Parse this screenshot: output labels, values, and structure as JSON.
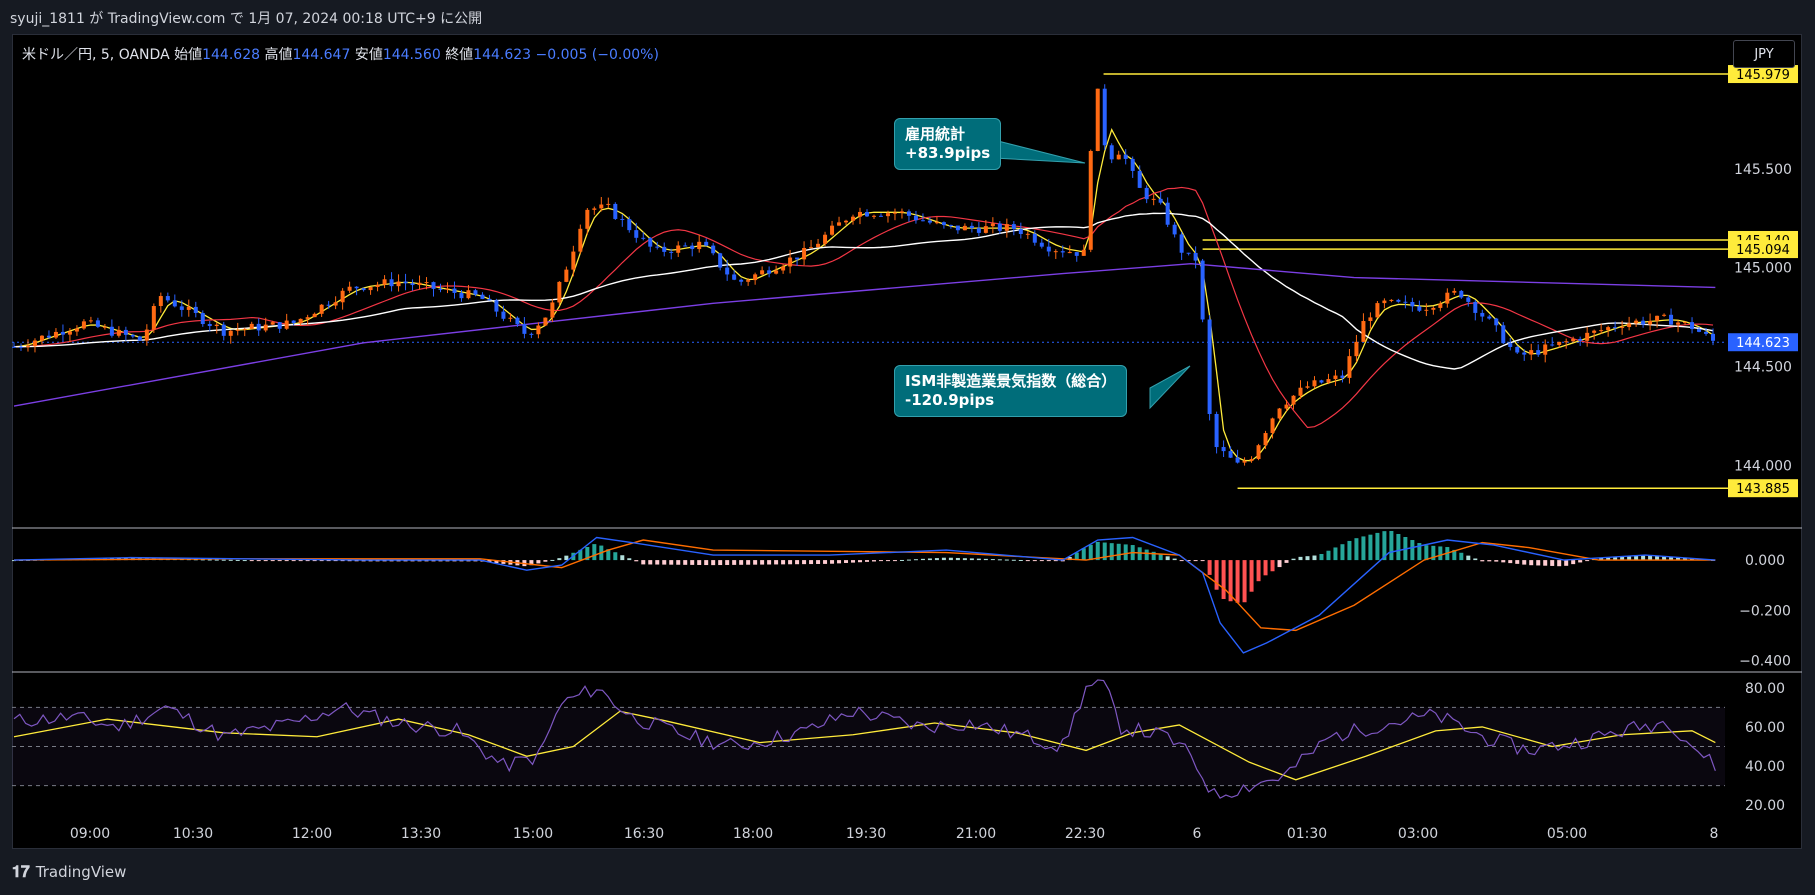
{
  "header": {
    "published_text": "syuji_1811 が TradingView.com で 1月 07, 2024 00:18 UTC+9 に公開"
  },
  "legend": {
    "symbol": "米ドル／円, 5, OANDA",
    "open_label": "始値",
    "open": "144.628",
    "high_label": "高値",
    "high": "144.647",
    "low_label": "安値",
    "low": "144.560",
    "close_label": "終値",
    "close": "144.623",
    "change": "−0.005 (−0.00%)"
  },
  "currency_button": "JPY",
  "footer": {
    "brand": "TradingView",
    "logo_icon": "tradingview-logo-icon"
  },
  "colors": {
    "up": "#ff6a13",
    "down": "#2962ff",
    "ma_fast": "#ffeb3b",
    "ma_mid": "#f23645",
    "ma_slow": "#ffffff",
    "ma_long": "#7b3fe4",
    "level": "#ffeb3b",
    "macd": "#2962ff",
    "signal": "#ff6d00",
    "rsi": "#7e57c2",
    "rsi_ma": "#ffeb3b"
  },
  "callouts": [
    {
      "title": "雇用統計",
      "value": "+83.9pips"
    },
    {
      "title": "ISM非製造業景気指数（総合）",
      "value": "-120.9pips"
    }
  ],
  "chart_data": [
    {
      "type": "candlestick",
      "symbol": "USD/JPY",
      "interval": "5",
      "xticks": [
        "09:00",
        "10:30",
        "12:00",
        "13:30",
        "15:00",
        "16:30",
        "18:00",
        "19:30",
        "21:00",
        "22:30",
        "6",
        "01:30",
        "03:00",
        "05:00",
        "8"
      ],
      "yticks": [
        "145.500",
        "145.000",
        "144.500",
        "144.000"
      ],
      "ylim": [
        143.8,
        146.05
      ],
      "price_path": [
        [
          0,
          144.6
        ],
        [
          60,
          144.72
        ],
        [
          110,
          144.63
        ],
        [
          125,
          144.86
        ],
        [
          180,
          144.68
        ],
        [
          240,
          144.72
        ],
        [
          290,
          144.9
        ],
        [
          330,
          144.93
        ],
        [
          400,
          144.85
        ],
        [
          440,
          144.66
        ],
        [
          460,
          144.78
        ],
        [
          480,
          145.1
        ],
        [
          490,
          145.3
        ],
        [
          510,
          145.3
        ],
        [
          550,
          145.08
        ],
        [
          590,
          145.12
        ],
        [
          620,
          144.92
        ],
        [
          680,
          145.08
        ],
        [
          720,
          145.28
        ],
        [
          760,
          145.28
        ],
        [
          800,
          145.2
        ],
        [
          860,
          145.2
        ],
        [
          890,
          145.1
        ],
        [
          920,
          145.07
        ],
        [
          925,
          145.75
        ],
        [
          930,
          145.88
        ],
        [
          938,
          145.55
        ],
        [
          950,
          145.6
        ],
        [
          965,
          145.4
        ],
        [
          985,
          145.3
        ],
        [
          1000,
          145.1
        ],
        [
          1010,
          145.04
        ],
        [
          1018,
          145.05
        ],
        [
          1022,
          144.4
        ],
        [
          1030,
          144.1
        ],
        [
          1050,
          144.0
        ],
        [
          1062,
          144.05
        ],
        [
          1085,
          144.3
        ],
        [
          1110,
          144.4
        ],
        [
          1140,
          144.45
        ],
        [
          1160,
          144.75
        ],
        [
          1175,
          144.82
        ],
        [
          1210,
          144.8
        ],
        [
          1240,
          144.88
        ],
        [
          1270,
          144.7
        ],
        [
          1290,
          144.55
        ],
        [
          1320,
          144.6
        ],
        [
          1380,
          144.72
        ],
        [
          1420,
          144.74
        ],
        [
          1440,
          144.7
        ],
        [
          1460,
          144.62
        ]
      ],
      "levels": [
        145.979,
        145.14,
        145.094,
        143.885
      ],
      "last_price": 144.623,
      "moving_averages": [
        {
          "color_key": "ma_fast"
        },
        {
          "color_key": "ma_mid"
        },
        {
          "color_key": "ma_slow"
        },
        {
          "color_key": "ma_long"
        }
      ]
    },
    {
      "type": "macd",
      "yticks": [
        "0.000",
        "−0.200",
        "−0.400"
      ],
      "ylim": [
        -0.43,
        0.1
      ],
      "macd_path": [
        [
          0,
          0
        ],
        [
          100,
          0.01
        ],
        [
          300,
          0.0
        ],
        [
          400,
          0.0
        ],
        [
          440,
          -0.04
        ],
        [
          470,
          -0.02
        ],
        [
          500,
          0.09
        ],
        [
          530,
          0.07
        ],
        [
          600,
          0.02
        ],
        [
          700,
          0.02
        ],
        [
          800,
          0.04
        ],
        [
          900,
          0.0
        ],
        [
          930,
          0.08
        ],
        [
          960,
          0.09
        ],
        [
          1000,
          0.02
        ],
        [
          1020,
          -0.05
        ],
        [
          1035,
          -0.25
        ],
        [
          1055,
          -0.37
        ],
        [
          1075,
          -0.33
        ],
        [
          1120,
          -0.22
        ],
        [
          1180,
          0.03
        ],
        [
          1230,
          0.08
        ],
        [
          1270,
          0.06
        ],
        [
          1330,
          0.0
        ],
        [
          1400,
          0.02
        ],
        [
          1460,
          0.0
        ]
      ],
      "signal_path": [
        [
          0,
          0
        ],
        [
          200,
          0.005
        ],
        [
          400,
          0.005
        ],
        [
          470,
          -0.03
        ],
        [
          510,
          0.04
        ],
        [
          540,
          0.08
        ],
        [
          600,
          0.04
        ],
        [
          800,
          0.03
        ],
        [
          920,
          0.0
        ],
        [
          960,
          0.03
        ],
        [
          1000,
          0.02
        ],
        [
          1040,
          -0.12
        ],
        [
          1070,
          -0.27
        ],
        [
          1100,
          -0.28
        ],
        [
          1150,
          -0.18
        ],
        [
          1210,
          0.0
        ],
        [
          1260,
          0.07
        ],
        [
          1300,
          0.05
        ],
        [
          1360,
          0.0
        ],
        [
          1460,
          0.0
        ]
      ]
    },
    {
      "type": "rsi",
      "yticks": [
        "80.00",
        "60.00",
        "40.00",
        "20.00"
      ],
      "bands": [
        70,
        50,
        30
      ],
      "ylim": [
        15,
        85
      ],
      "rsi_path": [
        [
          0,
          63
        ],
        [
          50,
          65
        ],
        [
          90,
          60
        ],
        [
          130,
          70
        ],
        [
          180,
          55
        ],
        [
          240,
          62
        ],
        [
          280,
          70
        ],
        [
          330,
          62
        ],
        [
          380,
          58
        ],
        [
          420,
          40
        ],
        [
          450,
          45
        ],
        [
          470,
          72
        ],
        [
          500,
          80
        ],
        [
          530,
          65
        ],
        [
          580,
          55
        ],
        [
          620,
          50
        ],
        [
          680,
          58
        ],
        [
          720,
          68
        ],
        [
          780,
          60
        ],
        [
          820,
          62
        ],
        [
          870,
          55
        ],
        [
          900,
          50
        ],
        [
          920,
          80
        ],
        [
          935,
          82
        ],
        [
          950,
          60
        ],
        [
          990,
          55
        ],
        [
          1010,
          45
        ],
        [
          1030,
          25
        ],
        [
          1060,
          30
        ],
        [
          1090,
          35
        ],
        [
          1130,
          55
        ],
        [
          1180,
          62
        ],
        [
          1220,
          66
        ],
        [
          1260,
          55
        ],
        [
          1300,
          48
        ],
        [
          1340,
          52
        ],
        [
          1380,
          58
        ],
        [
          1420,
          63
        ],
        [
          1450,
          45
        ],
        [
          1460,
          40
        ]
      ],
      "rsi_ma_path": [
        [
          0,
          55
        ],
        [
          80,
          64
        ],
        [
          180,
          57
        ],
        [
          260,
          55
        ],
        [
          330,
          64
        ],
        [
          390,
          56
        ],
        [
          440,
          45
        ],
        [
          480,
          50
        ],
        [
          520,
          68
        ],
        [
          560,
          63
        ],
        [
          640,
          52
        ],
        [
          720,
          56
        ],
        [
          790,
          62
        ],
        [
          860,
          57
        ],
        [
          920,
          48
        ],
        [
          960,
          57
        ],
        [
          1000,
          61
        ],
        [
          1060,
          42
        ],
        [
          1100,
          33
        ],
        [
          1160,
          45
        ],
        [
          1220,
          58
        ],
        [
          1260,
          60
        ],
        [
          1320,
          50
        ],
        [
          1380,
          56
        ],
        [
          1440,
          58
        ],
        [
          1460,
          52
        ]
      ]
    }
  ]
}
